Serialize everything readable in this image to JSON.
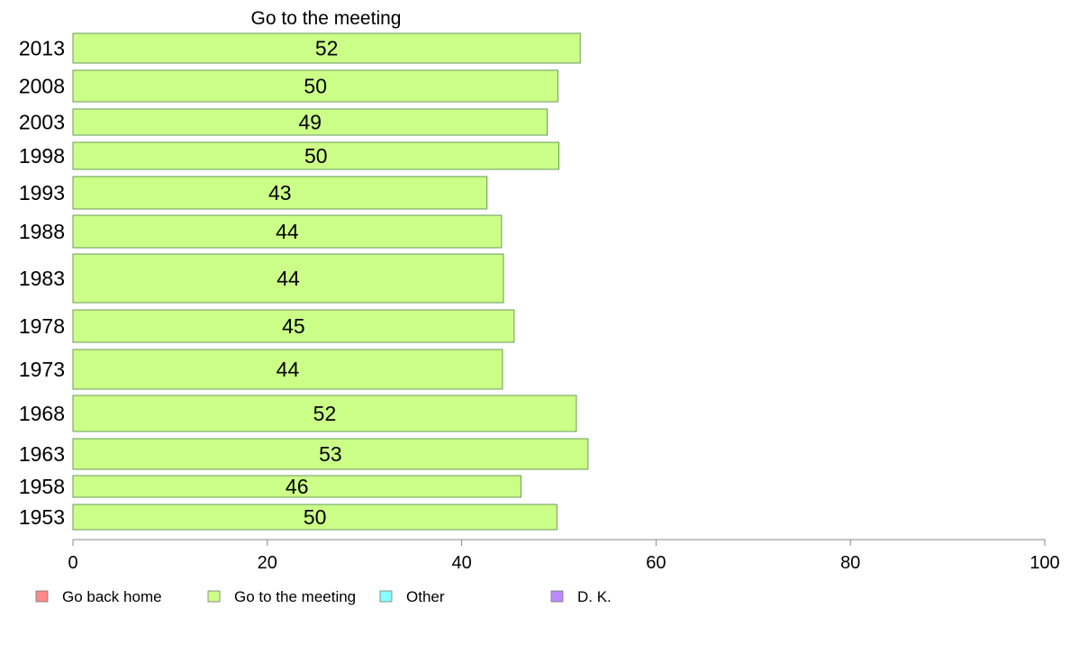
{
  "chart_data": {
    "type": "bar",
    "orientation": "horizontal",
    "title": "Go to the meeting",
    "categories": [
      "2013",
      "2008",
      "2003",
      "1998",
      "1993",
      "1988",
      "1983",
      "1978",
      "1973",
      "1968",
      "1963",
      "1958",
      "1953"
    ],
    "series": [
      {
        "name": "Go to the meeting",
        "color": "#ccff88",
        "values": [
          52,
          50,
          49,
          50,
          43,
          44,
          44,
          45,
          44,
          52,
          53,
          46,
          50
        ],
        "exact_values": [
          52.2,
          49.9,
          48.8,
          50.0,
          42.6,
          44.1,
          44.3,
          45.4,
          44.2,
          51.8,
          53.0,
          46.1,
          49.8
        ]
      }
    ],
    "xlim": [
      0,
      100
    ],
    "xticks": [
      0,
      20,
      40,
      60,
      80,
      100
    ],
    "legend": {
      "position": "bottom-left",
      "items": [
        {
          "label": "Go back home",
          "color": "#ff8888"
        },
        {
          "label": "Go to the meeting",
          "color": "#ccff88"
        },
        {
          "label": "Other",
          "color": "#88ffff"
        },
        {
          "label": "D. K.",
          "color": "#bb88ff"
        }
      ]
    },
    "grid": false
  }
}
